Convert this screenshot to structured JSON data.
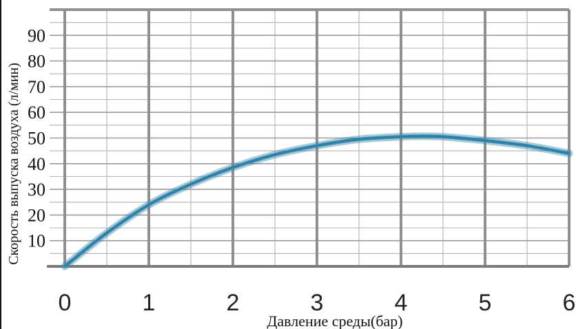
{
  "chart_data": {
    "type": "line",
    "xlabel": "Давление среды(бар)",
    "ylabel": "Скорость выпуска воздуха (л/мин)",
    "xlim": [
      0,
      6
    ],
    "ylim": [
      0,
      100
    ],
    "x_ticks": [
      "0",
      "1",
      "2",
      "3",
      "4",
      "5",
      "6"
    ],
    "y_ticks": [
      "10",
      "20",
      "30",
      "40",
      "50",
      "60",
      "70",
      "80",
      "90"
    ],
    "grid": true,
    "series": [
      {
        "color": "#3a8bb0",
        "x": [
          0,
          0.5,
          1,
          1.5,
          2,
          2.5,
          3,
          3.5,
          4,
          4.25,
          4.5,
          5,
          5.5,
          6
        ],
        "y": [
          0,
          13,
          24,
          32,
          38.5,
          43.5,
          47,
          49.5,
          50.5,
          50.7,
          50.5,
          49,
          47,
          44
        ]
      }
    ]
  }
}
